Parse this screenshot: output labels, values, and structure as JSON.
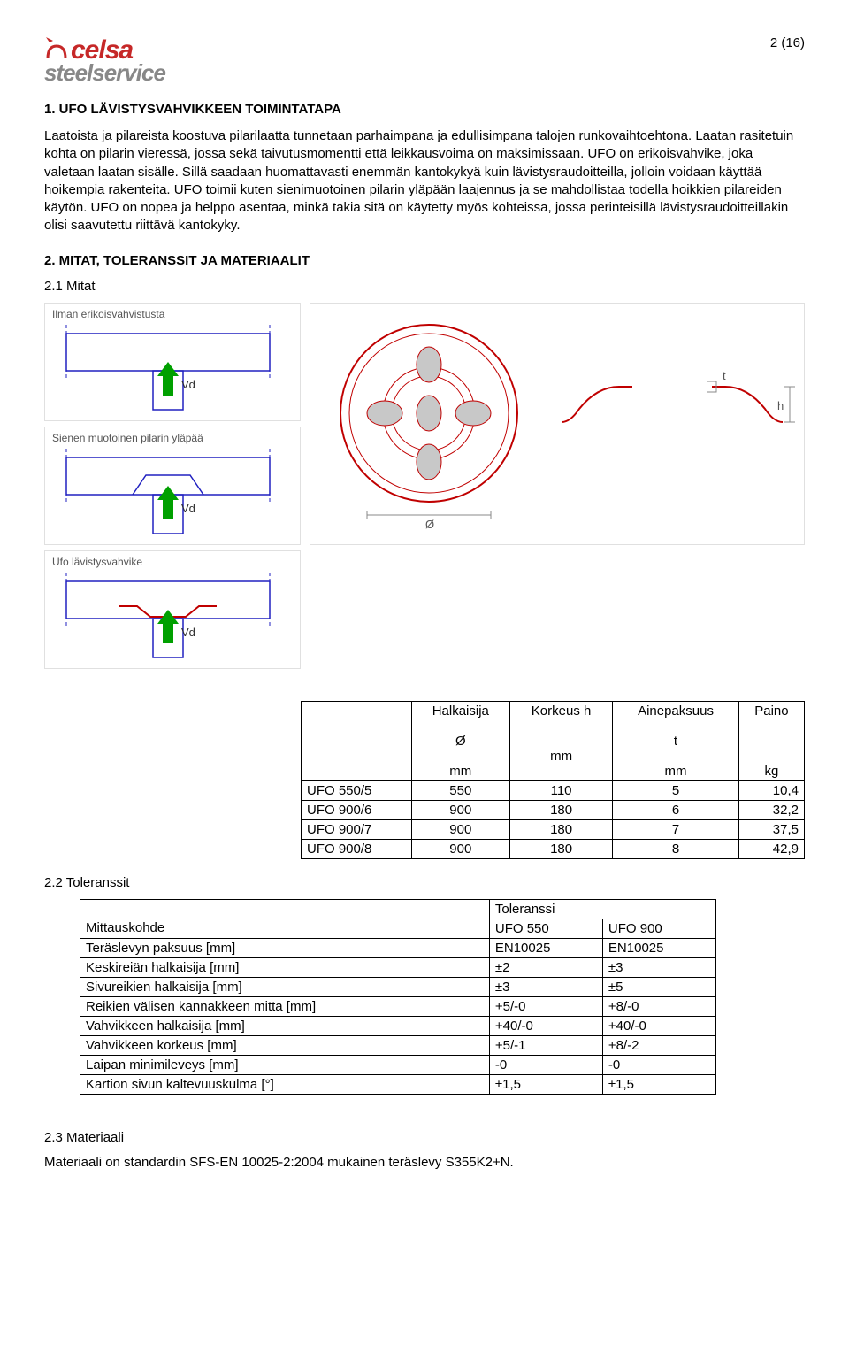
{
  "page_number": "2 (16)",
  "logo": {
    "name_top": "celsa",
    "name_bottom": "steelservice",
    "brand_color": "#c62828",
    "sub_color": "#888888"
  },
  "section1": {
    "title": "1. UFO LÄVISTYSVAHVIKKEEN TOIMINTATAPA",
    "body": "Laatoista ja pilareista koostuva pilarilaatta tunnetaan parhaimpana ja edullisimpana talojen runkovaihtoehtona. Laatan rasitetuin kohta on pilarin vieressä, jossa sekä taivutusmomentti että leikkausvoima on maksimissaan. UFO on erikoisvahvike, joka valetaan laatan sisälle. Sillä saadaan huomattavasti enemmän kantokykyä kuin lävistysraudoitteilla, jolloin voidaan käyttää hoikempia rakenteita. UFO toimii kuten sienimuotoinen pilarin yläpään laajennus ja se mahdollistaa todella hoikkien pilareiden käytön. UFO on nopea ja helppo asentaa, minkä takia sitä on käytetty myös kohteissa, jossa perinteisillä lävistysraudoitteillakin olisi saavutettu riittävä kantokyky."
  },
  "section2": {
    "title": "2. MITAT, TOLERANSSIT JA MATERIAALIT",
    "sub1": "2.1 Mitat",
    "sub2": "2.2 Toleranssit",
    "sub3": "2.3 Materiaali",
    "material_text": "Materiaali on standardin SFS-EN 10025-2:2004 mukainen teräslevy S355K2+N."
  },
  "diagrams": {
    "left": [
      {
        "label": "Ilman erikoisvahvistusta",
        "vd": "Vd"
      },
      {
        "label": "Sienen muotoinen pilarin yläpää",
        "vd": "Vd"
      },
      {
        "label": "Ufo lävistysvahvike",
        "vd": "Vd"
      }
    ],
    "right": {
      "dim_d": "Ø",
      "dim_t": "t",
      "dim_h": "h"
    },
    "colors": {
      "slab_outline": "#2020c0",
      "load_arrow": "#00a000",
      "profile_line": "#c00000",
      "dimension_line": "#888888",
      "label_text": "#555555",
      "vd_text": "#303030"
    }
  },
  "table_dims": {
    "headers": {
      "c0": "",
      "c1": "Halkaisija",
      "c1s": "Ø",
      "c1u": "mm",
      "c2": "Korkeus h",
      "c2u": "mm",
      "c3": "Ainepaksuus",
      "c3s": "t",
      "c3u": "mm",
      "c4": "Paino",
      "c4u": "kg"
    },
    "rows": [
      {
        "name": "UFO 550/5",
        "d": "550",
        "h": "110",
        "t": "5",
        "kg": "10,4"
      },
      {
        "name": "UFO 900/6",
        "d": "900",
        "h": "180",
        "t": "6",
        "kg": "32,2"
      },
      {
        "name": "UFO 900/7",
        "d": "900",
        "h": "180",
        "t": "7",
        "kg": "37,5"
      },
      {
        "name": "UFO 900/8",
        "d": "900",
        "h": "180",
        "t": "8",
        "kg": "42,9"
      }
    ]
  },
  "table_tol": {
    "headers": {
      "c0": "Mittauskohde",
      "span": "Toleranssi",
      "c1": "UFO 550",
      "c2": "UFO 900"
    },
    "rows": [
      {
        "m": "Teräslevyn paksuus [mm]",
        "a": "EN10025",
        "b": "EN10025"
      },
      {
        "m": "Keskireiän halkaisija [mm]",
        "a": "±2",
        "b": "±3"
      },
      {
        "m": "Sivureikien halkaisija [mm]",
        "a": "±3",
        "b": "±5"
      },
      {
        "m": "Reikien välisen kannakkeen mitta [mm]",
        "a": "+5/-0",
        "b": "+8/-0"
      },
      {
        "m": "Vahvikkeen halkaisija [mm]",
        "a": "+40/-0",
        "b": "+40/-0"
      },
      {
        "m": "Vahvikkeen korkeus [mm]",
        "a": "+5/-1",
        "b": "+8/-2"
      },
      {
        "m": "Laipan minimileveys [mm]",
        "a": "-0",
        "b": "-0"
      },
      {
        "m": "Kartion sivun kaltevuuskulma [°]",
        "a": "±1,5",
        "b": "±1,5"
      }
    ]
  }
}
